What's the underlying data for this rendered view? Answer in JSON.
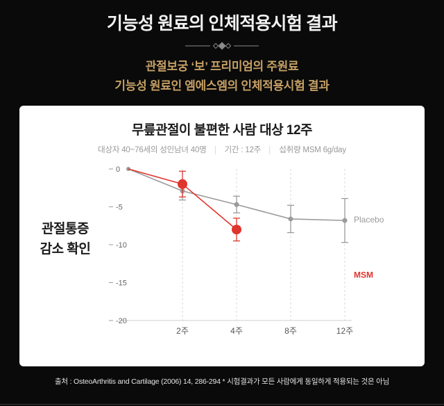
{
  "header": {
    "title": "기능성 원료의 인체적용시험 결과",
    "subtitle_line1": "관절보궁 ‘보’ 프리미엄의 주원료",
    "subtitle_line2": "기능성 원료인 엠에스엠의 인체적용시험 결과"
  },
  "card": {
    "chart_title": "무릎관절이 불편한 사람 대상 12주",
    "meta": {
      "subjects": "대상자 40~76세의 성인남녀 40명",
      "duration": "기간 : 12주",
      "dose": "섭취량 MSM 6g/day",
      "separator": "│"
    },
    "side_label_line1": "관절통증",
    "side_label_line2": "감소 확인"
  },
  "footnote": "출처 : OsteoArthritis and Cartilage (2006) 14, 286-294 * 시험결과가 모든 사람에게 동일하게 적용되는 것은 아님",
  "colors": {
    "background": "#0a0a0a",
    "accent_gold": "#c6a065",
    "msm_red": "#e0342e",
    "placebo_gray": "#9a9a9a",
    "card_bg": "#ffffff"
  },
  "chart_data": {
    "type": "line",
    "title": "무릎관절이 불편한 사람 대상 12주",
    "x_tick_labels": [
      "",
      "2주",
      "4주",
      "8주",
      "12주"
    ],
    "ylim": [
      -20,
      0
    ],
    "y_ticks": [
      0,
      -5,
      -10,
      -15,
      -20
    ],
    "grid": "vertical-dashed",
    "legend_position": "right-of-plot",
    "series": [
      {
        "name": "Placebo",
        "color": "#9a9a9a",
        "bold": false,
        "label_y": -6.7,
        "points": [
          {
            "x": 0,
            "y": 0,
            "r": 3
          },
          {
            "x": 1,
            "y": -2.9,
            "err": 1.2,
            "r": 3.5
          },
          {
            "x": 2,
            "y": -4.7,
            "err": 1.1,
            "r": 3.5
          },
          {
            "x": 3,
            "y": -6.6,
            "err": 1.8,
            "r": 3.5
          },
          {
            "x": 4,
            "y": -6.8,
            "err": 2.9,
            "r": 3.5
          }
        ]
      },
      {
        "name": "MSM",
        "color": "#e0342e",
        "bold": true,
        "label_y": -14,
        "points": [
          {
            "x": 0,
            "y": 0,
            "r": 0
          },
          {
            "x": 1,
            "y": -2,
            "err": 1.7,
            "r": 7
          },
          {
            "x": 2,
            "y": -8,
            "err": 1.5,
            "r": 7
          }
        ]
      }
    ]
  }
}
